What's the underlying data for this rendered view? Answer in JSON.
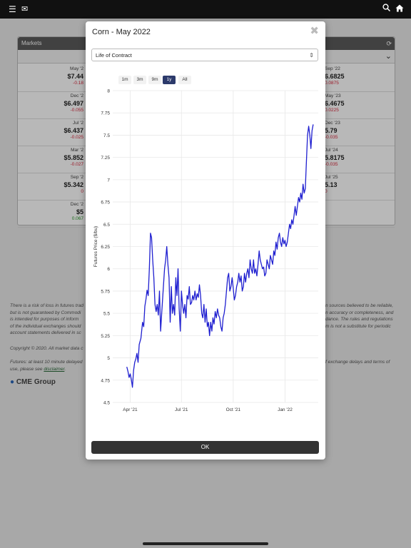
{
  "topbar": {
    "menu_icon": "hamburger-icon",
    "mail_icon": "mail-icon",
    "search_icon": "search-icon",
    "home_icon": "home-icon"
  },
  "markets": {
    "title": "Markets",
    "left": [
      {
        "month": "May '2",
        "price": "$7.44",
        "change": "-0.18"
      },
      {
        "month": "Dec '2",
        "price": "$6.497",
        "change": "-0.055"
      },
      {
        "month": "Jul '2",
        "price": "$6.437",
        "change": "-0.025"
      },
      {
        "month": "Mar '2",
        "price": "$5.852",
        "change": "-0.027"
      },
      {
        "month": "Sep '2",
        "price": "$5.342",
        "change": "0"
      },
      {
        "month": "Dec '2",
        "price": "$5",
        "change": "0.067"
      }
    ],
    "right": [
      {
        "month": "Sep '22",
        "price": "6.6825",
        "change": "0.0875"
      },
      {
        "month": "May '23",
        "price": "6.4675",
        "change": "0.0225"
      },
      {
        "month": "Dec '23",
        "price": "5.79",
        "change": "-0.035"
      },
      {
        "month": "Jul '24",
        "price": "5.8175",
        "change": "-0.035"
      },
      {
        "month": "Jul '25",
        "price": "5.13",
        "change": "0"
      }
    ]
  },
  "disclaimer": {
    "p1": "There is a risk of loss in futures trad",
    "p1_rest": "n sources believed to be reliable,",
    "p2": "but is not guaranteed by Commodi",
    "p2_rest": "n accuracy or completeness, and",
    "p3": "is intended for purposes of inform",
    "p3_rest": "dance. The rules and regulations",
    "p4": "of the individual exchanges should",
    "p4_rest": "m is not a substitute for periodic",
    "p5": "account statements delivered in sc",
    "copyright": "Copyright © 2020. All market data c",
    "futures": "Futures: at least 10 minute delayed",
    "futures_rest": "f exchange delays and terms of",
    "use": "use, please see",
    "link": "disclaimer",
    "brand": "CME Group"
  },
  "modal": {
    "title": "Corn - May 2022",
    "close_icon": "close-icon",
    "select_value": "Life of Contract",
    "ranges": [
      "1m",
      "3m",
      "9m",
      "1y",
      "All"
    ],
    "active_range": "1y",
    "ok_label": "OK"
  },
  "chart_data": {
    "type": "line",
    "title": "",
    "xlabel": "",
    "ylabel": "Futures Price ($/bu)",
    "ylim": [
      4.5,
      8
    ],
    "yticks": [
      "4.5",
      "4.75",
      "5",
      "5.25",
      "5.5",
      "5.75",
      "6",
      "6.25",
      "6.5",
      "6.75",
      "7",
      "7.25",
      "7.5",
      "7.75",
      "8"
    ],
    "xticks": [
      {
        "label": "Apr '21",
        "date": "2021-04-01"
      },
      {
        "label": "Jul '21",
        "date": "2021-07-01"
      },
      {
        "label": "Oct '21",
        "date": "2021-10-01"
      },
      {
        "label": "Jan '22",
        "date": "2022-01-01"
      }
    ],
    "grid": true,
    "series": [
      {
        "color": "#1f1fd0",
        "points": [
          [
            "2021-03-26",
            4.9
          ],
          [
            "2021-03-28",
            4.85
          ],
          [
            "2021-03-30",
            4.78
          ],
          [
            "2021-04-01",
            4.82
          ],
          [
            "2021-04-03",
            4.76
          ],
          [
            "2021-04-05",
            4.67
          ],
          [
            "2021-04-07",
            4.86
          ],
          [
            "2021-04-09",
            4.95
          ],
          [
            "2021-04-11",
            4.99
          ],
          [
            "2021-04-13",
            5.05
          ],
          [
            "2021-04-15",
            4.95
          ],
          [
            "2021-04-17",
            5.15
          ],
          [
            "2021-04-20",
            5.22
          ],
          [
            "2021-04-23",
            5.4
          ],
          [
            "2021-04-25",
            5.35
          ],
          [
            "2021-04-27",
            5.58
          ],
          [
            "2021-04-29",
            5.66
          ],
          [
            "2021-05-01",
            5.76
          ],
          [
            "2021-05-03",
            5.7
          ],
          [
            "2021-05-05",
            6.0
          ],
          [
            "2021-05-07",
            6.4
          ],
          [
            "2021-05-09",
            6.35
          ],
          [
            "2021-05-11",
            6.1
          ],
          [
            "2021-05-13",
            5.9
          ],
          [
            "2021-05-15",
            5.6
          ],
          [
            "2021-05-17",
            5.52
          ],
          [
            "2021-05-19",
            5.6
          ],
          [
            "2021-05-21",
            5.48
          ],
          [
            "2021-05-23",
            5.75
          ],
          [
            "2021-05-25",
            5.3
          ],
          [
            "2021-05-27",
            5.5
          ],
          [
            "2021-05-29",
            5.7
          ],
          [
            "2021-06-01",
            6.0
          ],
          [
            "2021-06-03",
            6.1
          ],
          [
            "2021-06-05",
            6.25
          ],
          [
            "2021-06-07",
            6.05
          ],
          [
            "2021-06-09",
            5.9
          ],
          [
            "2021-06-11",
            5.4
          ],
          [
            "2021-06-13",
            5.8
          ],
          [
            "2021-06-15",
            5.5
          ],
          [
            "2021-06-17",
            5.6
          ],
          [
            "2021-06-19",
            5.48
          ],
          [
            "2021-06-21",
            5.9
          ],
          [
            "2021-06-23",
            5.7
          ],
          [
            "2021-06-25",
            6.0
          ],
          [
            "2021-06-27",
            5.55
          ],
          [
            "2021-06-29",
            5.3
          ],
          [
            "2021-07-01",
            5.75
          ],
          [
            "2021-07-03",
            5.6
          ],
          [
            "2021-07-05",
            5.5
          ],
          [
            "2021-07-07",
            5.6
          ],
          [
            "2021-07-09",
            5.45
          ],
          [
            "2021-07-11",
            5.7
          ],
          [
            "2021-07-13",
            5.66
          ],
          [
            "2021-07-15",
            5.8
          ],
          [
            "2021-07-17",
            5.6
          ],
          [
            "2021-07-19",
            5.62
          ],
          [
            "2021-07-21",
            5.7
          ],
          [
            "2021-07-23",
            5.65
          ],
          [
            "2021-07-25",
            5.75
          ],
          [
            "2021-07-27",
            5.65
          ],
          [
            "2021-07-29",
            5.72
          ],
          [
            "2021-07-31",
            5.68
          ],
          [
            "2021-08-02",
            5.82
          ],
          [
            "2021-08-04",
            5.7
          ],
          [
            "2021-08-06",
            5.5
          ],
          [
            "2021-08-08",
            5.45
          ],
          [
            "2021-08-10",
            5.6
          ],
          [
            "2021-08-12",
            5.4
          ],
          [
            "2021-08-14",
            5.55
          ],
          [
            "2021-08-16",
            5.35
          ],
          [
            "2021-08-18",
            5.4
          ],
          [
            "2021-08-20",
            5.25
          ],
          [
            "2021-08-22",
            5.4
          ],
          [
            "2021-08-24",
            5.3
          ],
          [
            "2021-08-26",
            5.45
          ],
          [
            "2021-08-28",
            5.38
          ],
          [
            "2021-08-30",
            5.52
          ],
          [
            "2021-09-01",
            5.45
          ],
          [
            "2021-09-03",
            5.55
          ],
          [
            "2021-09-05",
            5.48
          ],
          [
            "2021-09-07",
            5.45
          ],
          [
            "2021-09-09",
            5.35
          ],
          [
            "2021-09-11",
            5.3
          ],
          [
            "2021-09-13",
            5.45
          ],
          [
            "2021-09-15",
            5.5
          ],
          [
            "2021-09-17",
            5.6
          ],
          [
            "2021-09-19",
            5.75
          ],
          [
            "2021-09-21",
            5.9
          ],
          [
            "2021-09-23",
            5.95
          ],
          [
            "2021-09-25",
            5.75
          ],
          [
            "2021-09-27",
            5.8
          ],
          [
            "2021-09-29",
            5.9
          ],
          [
            "2021-10-01",
            5.78
          ],
          [
            "2021-10-03",
            5.65
          ],
          [
            "2021-10-05",
            5.7
          ],
          [
            "2021-10-07",
            5.8
          ],
          [
            "2021-10-09",
            5.85
          ],
          [
            "2021-10-11",
            5.95
          ],
          [
            "2021-10-13",
            5.85
          ],
          [
            "2021-10-15",
            5.92
          ],
          [
            "2021-10-17",
            5.75
          ],
          [
            "2021-10-19",
            5.8
          ],
          [
            "2021-10-21",
            5.95
          ],
          [
            "2021-10-23",
            5.85
          ],
          [
            "2021-10-25",
            5.95
          ],
          [
            "2021-10-27",
            6.0
          ],
          [
            "2021-10-29",
            5.9
          ],
          [
            "2021-10-31",
            6.1
          ],
          [
            "2021-11-02",
            6.0
          ],
          [
            "2021-11-04",
            5.95
          ],
          [
            "2021-11-06",
            6.1
          ],
          [
            "2021-11-08",
            5.95
          ],
          [
            "2021-11-10",
            6.0
          ],
          [
            "2021-11-12",
            5.92
          ],
          [
            "2021-11-14",
            6.05
          ],
          [
            "2021-11-16",
            6.2
          ],
          [
            "2021-11-18",
            6.1
          ],
          [
            "2021-11-20",
            6.05
          ],
          [
            "2021-11-22",
            6.0
          ],
          [
            "2021-11-24",
            6.02
          ],
          [
            "2021-11-26",
            5.92
          ],
          [
            "2021-11-28",
            5.95
          ],
          [
            "2021-11-30",
            6.1
          ],
          [
            "2021-12-02",
            6.05
          ],
          [
            "2021-12-04",
            6.0
          ],
          [
            "2021-12-06",
            6.15
          ],
          [
            "2021-12-08",
            6.1
          ],
          [
            "2021-12-10",
            6.05
          ],
          [
            "2021-12-12",
            6.2
          ],
          [
            "2021-12-14",
            6.15
          ],
          [
            "2021-12-16",
            6.3
          ],
          [
            "2021-12-18",
            6.22
          ],
          [
            "2021-12-20",
            6.35
          ],
          [
            "2021-12-22",
            6.4
          ],
          [
            "2021-12-24",
            6.3
          ],
          [
            "2021-12-26",
            6.25
          ],
          [
            "2021-12-28",
            6.35
          ],
          [
            "2021-12-30",
            6.28
          ],
          [
            "2022-01-01",
            6.32
          ],
          [
            "2022-01-03",
            6.25
          ],
          [
            "2022-01-05",
            6.3
          ],
          [
            "2022-01-07",
            6.4
          ],
          [
            "2022-01-09",
            6.5
          ],
          [
            "2022-01-11",
            6.45
          ],
          [
            "2022-01-13",
            6.55
          ],
          [
            "2022-01-15",
            6.5
          ],
          [
            "2022-01-17",
            6.6
          ],
          [
            "2022-01-19",
            6.7
          ],
          [
            "2022-01-21",
            6.6
          ],
          [
            "2022-01-23",
            6.7
          ],
          [
            "2022-01-25",
            6.8
          ],
          [
            "2022-01-27",
            6.75
          ],
          [
            "2022-01-29",
            6.85
          ],
          [
            "2022-01-31",
            6.78
          ],
          [
            "2022-02-02",
            6.95
          ],
          [
            "2022-02-04",
            6.85
          ],
          [
            "2022-02-06",
            6.9
          ],
          [
            "2022-02-08",
            7.2
          ],
          [
            "2022-02-10",
            7.5
          ],
          [
            "2022-02-12",
            7.6
          ],
          [
            "2022-02-14",
            7.5
          ],
          [
            "2022-02-16",
            7.35
          ],
          [
            "2022-02-18",
            7.55
          ],
          [
            "2022-02-20",
            7.62
          ]
        ]
      }
    ]
  }
}
